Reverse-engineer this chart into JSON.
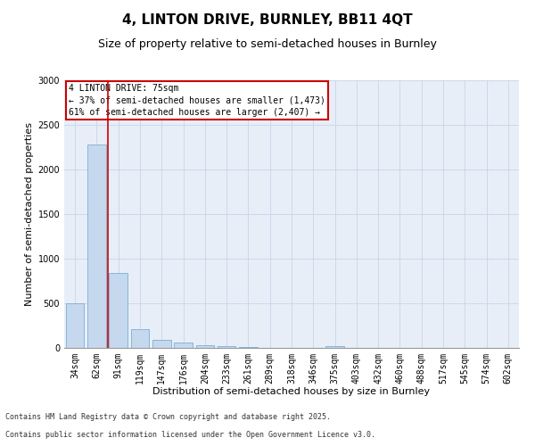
{
  "title1": "4, LINTON DRIVE, BURNLEY, BB11 4QT",
  "title2": "Size of property relative to semi-detached houses in Burnley",
  "xlabel": "Distribution of semi-detached houses by size in Burnley",
  "ylabel": "Number of semi-detached properties",
  "categories": [
    "34sqm",
    "62sqm",
    "91sqm",
    "119sqm",
    "147sqm",
    "176sqm",
    "204sqm",
    "233sqm",
    "261sqm",
    "289sqm",
    "318sqm",
    "346sqm",
    "375sqm",
    "403sqm",
    "432sqm",
    "460sqm",
    "488sqm",
    "517sqm",
    "545sqm",
    "574sqm",
    "602sqm"
  ],
  "values": [
    500,
    2280,
    840,
    210,
    90,
    60,
    30,
    20,
    15,
    0,
    0,
    0,
    20,
    0,
    0,
    0,
    0,
    0,
    0,
    0,
    0
  ],
  "bar_color": "#c5d8ee",
  "bar_edge_color": "#7aafd4",
  "vline_x": 1.5,
  "vline_color": "#cc0000",
  "annotation_box_text": "4 LINTON DRIVE: 75sqm\n← 37% of semi-detached houses are smaller (1,473)\n61% of semi-detached houses are larger (2,407) →",
  "annotation_box_color": "#cc0000",
  "ylim": [
    0,
    3000
  ],
  "yticks": [
    0,
    500,
    1000,
    1500,
    2000,
    2500,
    3000
  ],
  "background_color": "#ffffff",
  "plot_bg_color": "#e8eef8",
  "grid_color": "#c8d4e8",
  "footnote1": "Contains HM Land Registry data © Crown copyright and database right 2025.",
  "footnote2": "Contains public sector information licensed under the Open Government Licence v3.0.",
  "title1_fontsize": 11,
  "title2_fontsize": 9,
  "axis_label_fontsize": 8,
  "tick_fontsize": 7,
  "footnote_fontsize": 6
}
